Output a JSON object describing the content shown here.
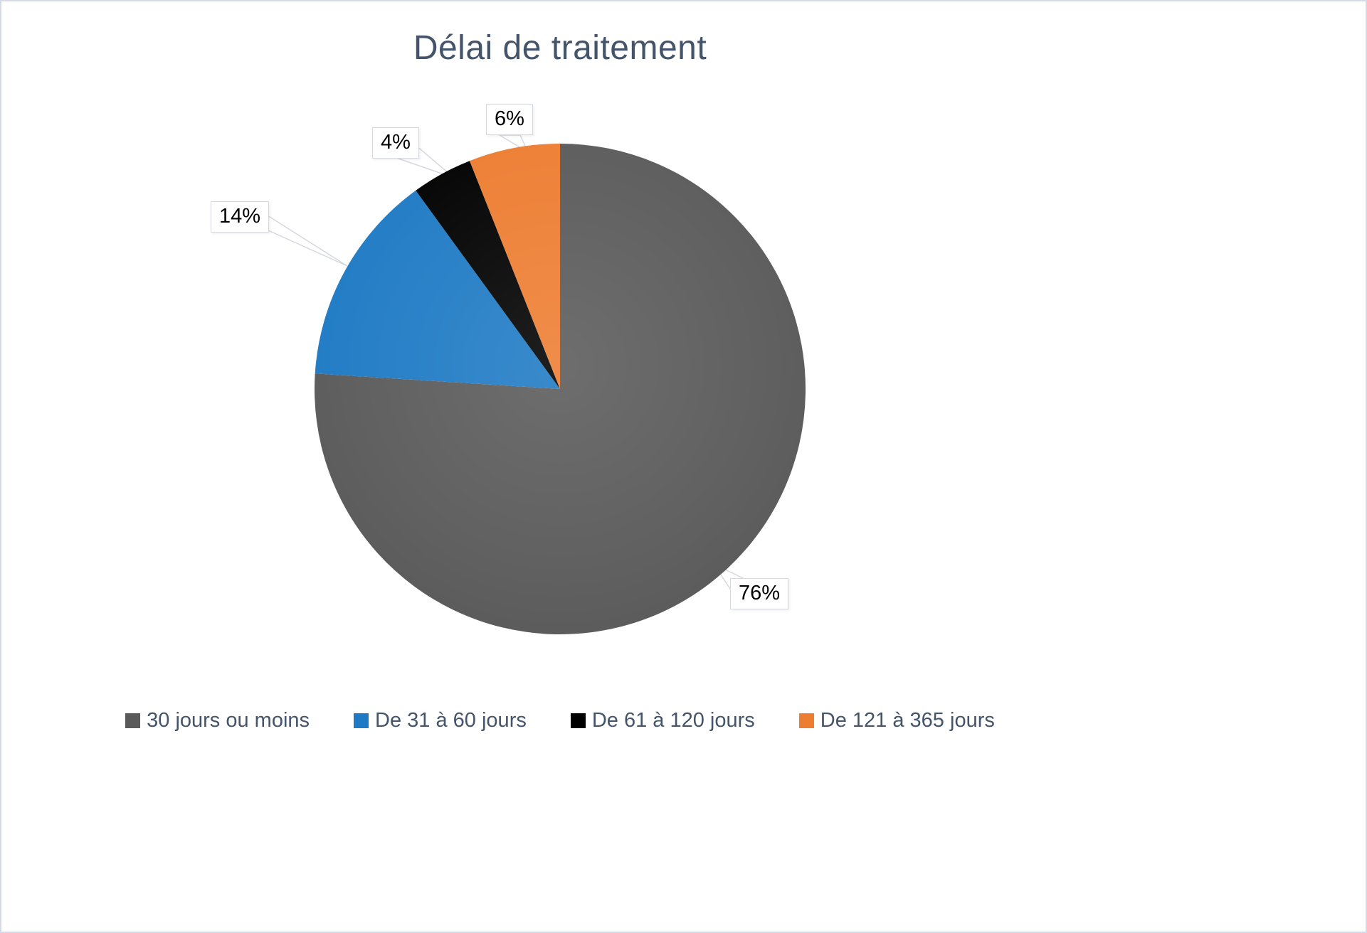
{
  "page": {
    "background": "#FFFFFF",
    "border_color": "#D6D9E6"
  },
  "chart_data": {
    "type": "pie",
    "title": "Délai de traitement",
    "direction": "clockwise",
    "start_angle_deg": 0,
    "legend_position": "bottom",
    "slices": [
      {
        "label": "30 jours ou moins",
        "value_pct": 76,
        "color": "#5A5A5A",
        "data_label": "76%"
      },
      {
        "label": "De 31 à 60 jours",
        "value_pct": 14,
        "color": "#1E7AC4",
        "data_label": "14%"
      },
      {
        "label": "De 61 à 120 jours",
        "value_pct": 4,
        "color": "#000000",
        "data_label": "4%"
      },
      {
        "label": "De 121 à 365 jours",
        "value_pct": 6,
        "color": "#ED7D31",
        "data_label": "6%"
      }
    ],
    "styles": {
      "title_color": "#44546A",
      "legend_text_color": "#44546A",
      "label_text_color": "#000000",
      "callout_bg": "#FFFFFF",
      "callout_border": "#D5D8DE"
    }
  }
}
